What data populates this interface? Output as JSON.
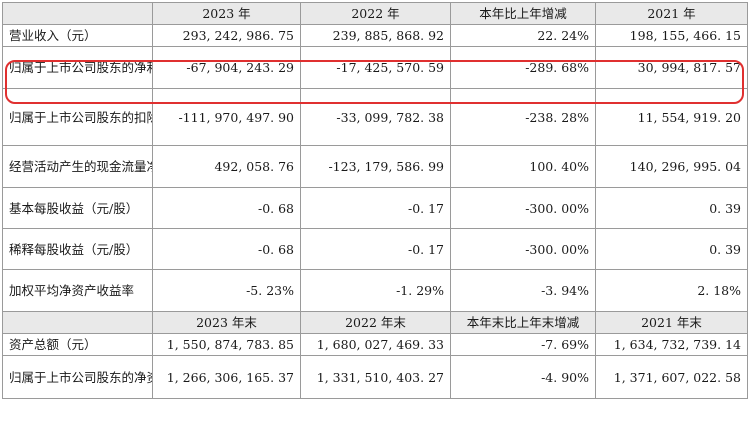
{
  "header1": [
    "",
    "2023 年",
    "2022 年",
    "本年比上年增减",
    "2021 年"
  ],
  "rows1": [
    {
      "label": "营业收入（元）",
      "values": [
        "293, 242, 986. 75",
        "239, 885, 868. 92",
        "22. 24%",
        "198, 155, 466. 15"
      ]
    },
    {
      "label": "归属于上市公司股东的净利润（元）",
      "values": [
        "-67, 904, 243. 29",
        "-17, 425, 570. 59",
        "-289. 68%",
        "30, 994, 817. 57"
      ]
    },
    {
      "label": "归属于上市公司股东的扣除非经常性损益的净利润（元）",
      "values": [
        "-111, 970, 497. 90",
        "-33, 099, 782. 38",
        "-238. 28%",
        "11, 554, 919. 20"
      ]
    },
    {
      "label": "经营活动产生的现金流量净额（元）",
      "values": [
        "492, 058. 76",
        "-123, 179, 586. 99",
        "100. 40%",
        "140, 296, 995. 04"
      ]
    },
    {
      "label": "基本每股收益（元/股）",
      "values": [
        "-0. 68",
        "-0. 17",
        "-300. 00%",
        "0. 39"
      ]
    },
    {
      "label": "稀释每股收益（元/股）",
      "values": [
        "-0. 68",
        "-0. 17",
        "-300. 00%",
        "0. 39"
      ]
    },
    {
      "label": "加权平均净资产收益率",
      "values": [
        "-5. 23%",
        "-1. 29%",
        "-3. 94%",
        "2. 18%"
      ]
    }
  ],
  "header2": [
    "",
    "2023 年末",
    "2022 年末",
    "本年末比上年末增减",
    "2021 年末"
  ],
  "rows2": [
    {
      "label": "资产总额（元）",
      "values": [
        "1, 550, 874, 783. 85",
        "1, 680, 027, 469. 33",
        "-7. 69%",
        "1, 634, 732, 739. 14"
      ]
    },
    {
      "label": "归属于上市公司股东的净资产（元）",
      "values": [
        "1, 266, 306, 165. 37",
        "1, 331, 510, 403. 27",
        "-4. 90%",
        "1, 371, 607, 022. 58"
      ]
    }
  ],
  "highlight_color": "#e03030"
}
